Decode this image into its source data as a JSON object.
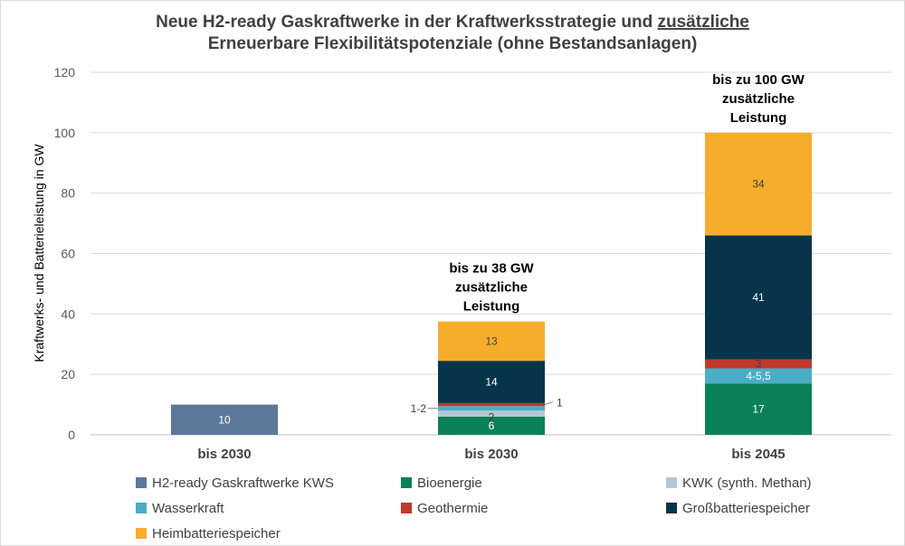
{
  "chart_data": {
    "type": "bar",
    "stacked": true,
    "title_line1_pre": "Neue H2-ready Gaskraftwerke in der Kraftwerksstrategie und ",
    "title_line1_underlined": "zusätzliche",
    "title_line2": "Erneuerbare Flexibilitätspotenziale (ohne Bestandsanlagen)",
    "ylabel": "Kraftwerks- und Batterieleistung in GW",
    "xlabel": "",
    "ylim": [
      0,
      120
    ],
    "yticks": [
      0,
      20,
      40,
      60,
      80,
      100,
      120
    ],
    "grid": true,
    "legend_position": "bottom",
    "categories": [
      "bis 2030",
      "bis 2030",
      "bis 2045"
    ],
    "series": [
      {
        "name": "H2-ready Gaskraftwerke KWS",
        "color": "#5b7a99",
        "values": [
          10,
          0,
          0
        ],
        "labels": [
          "10",
          "",
          ""
        ]
      },
      {
        "name": "Bioenergie",
        "color": "#0b8159",
        "values": [
          0,
          6,
          17
        ],
        "labels": [
          "",
          "6",
          "17"
        ]
      },
      {
        "name": "KWK (synth. Methan)",
        "color": "#b4c7d2",
        "values": [
          0,
          2,
          0
        ],
        "labels": [
          "",
          "2",
          ""
        ]
      },
      {
        "name": "Wasserkraft",
        "color": "#4bacc6",
        "values": [
          0,
          1.5,
          5
        ],
        "labels": [
          "",
          "1-2",
          "4-5,5"
        ]
      },
      {
        "name": "Geothermie",
        "color": "#c0392b",
        "values": [
          0,
          1,
          3
        ],
        "labels": [
          "",
          "1",
          "3"
        ]
      },
      {
        "name": "Großbatteriespeicher",
        "color": "#06344b",
        "values": [
          0,
          14,
          41
        ],
        "labels": [
          "",
          "14",
          "41"
        ]
      },
      {
        "name": "Heimbatteriespeicher",
        "color": "#f6ad2b",
        "values": [
          0,
          13,
          34
        ],
        "labels": [
          "",
          "13",
          "34"
        ]
      }
    ],
    "annotations": [
      {
        "category_index": 1,
        "lines": [
          "bis zu 38 GW",
          "zusätzliche",
          "Leistung"
        ]
      },
      {
        "category_index": 2,
        "lines": [
          "bis zu 100 GW",
          "zusätzliche",
          "Leistung"
        ]
      }
    ]
  }
}
